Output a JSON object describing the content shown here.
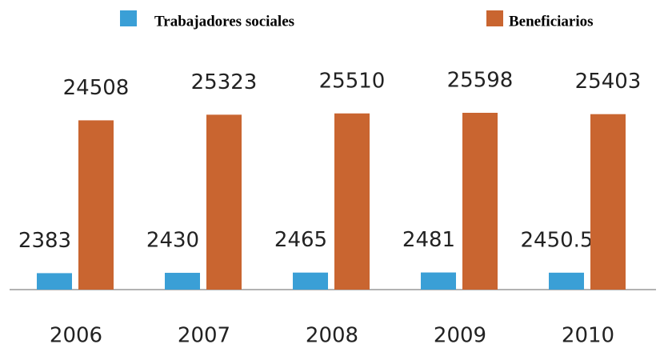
{
  "chart_data": {
    "type": "bar",
    "categories": [
      "2006",
      "2007",
      "2008",
      "2009",
      "2010"
    ],
    "series": [
      {
        "name": "Trabajadores sociales",
        "color": "#3a9fd6",
        "values": [
          2383,
          2430,
          2465,
          2481,
          2450.5
        ]
      },
      {
        "name": "Beneficiarios",
        "color": "#c96530",
        "values": [
          24508,
          25323,
          25510,
          25598,
          25403
        ]
      }
    ],
    "ylim": [
      0,
      30000
    ]
  }
}
